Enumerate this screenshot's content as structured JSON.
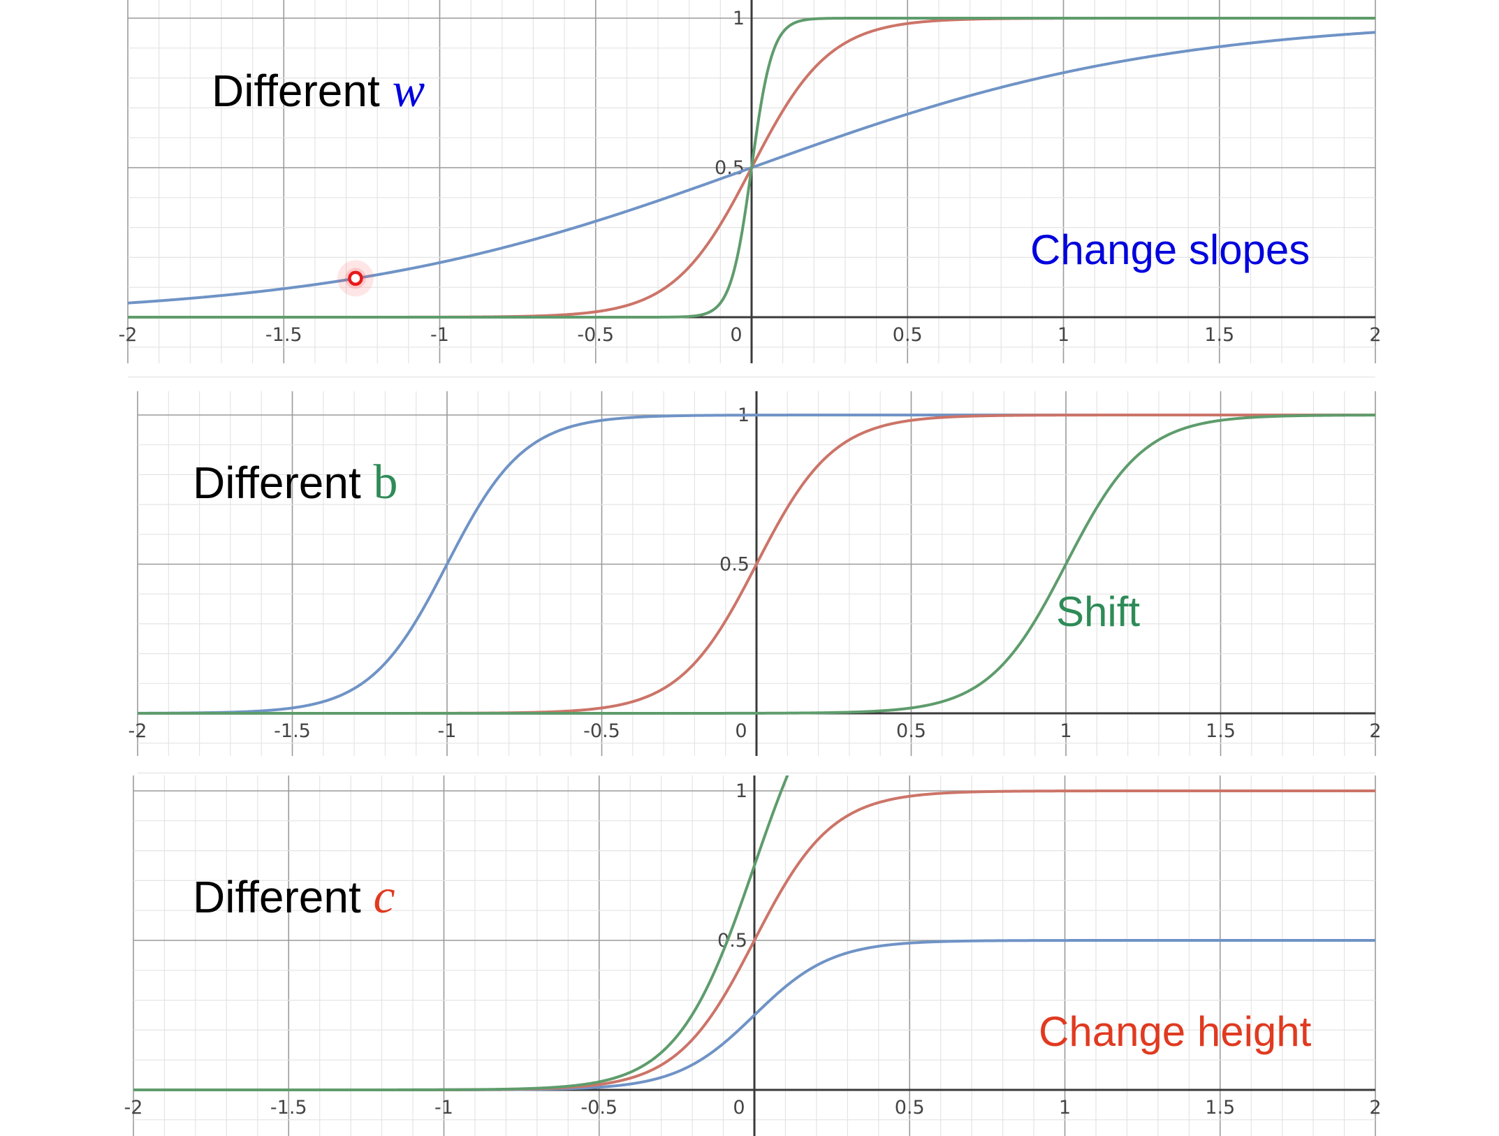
{
  "colors": {
    "blue": "#6f93c6",
    "red": "#cc7468",
    "green": "#5e9c6c",
    "annot_blue": "#0000dd",
    "annot_green": "#2e8b57",
    "annot_red": "#e03a20",
    "marker": "#e8191a"
  },
  "chart_data": [
    {
      "type": "line",
      "title": "Different",
      "title_variable": "w",
      "annotation": "Change slopes",
      "xlim": [
        -2,
        2
      ],
      "ylim": [
        0,
        1
      ],
      "x_ticks": [
        "-2",
        "-1.5",
        "-1",
        "-0.5",
        "0",
        "0.5",
        "1",
        "1.5",
        "2"
      ],
      "y_ticks": [
        "0.5",
        "1"
      ],
      "grid": true,
      "function": "c / (1 + exp(-(b + w*x)))",
      "series": [
        {
          "color": "blue",
          "w": 1.5,
          "b": 0,
          "c": 1
        },
        {
          "color": "red",
          "w": 8,
          "b": 0,
          "c": 1
        },
        {
          "color": "green",
          "w": 30,
          "b": 0,
          "c": 1
        }
      ],
      "marker": {
        "x": -1.27,
        "y": 0.13
      }
    },
    {
      "type": "line",
      "title": "Different",
      "title_variable": "b",
      "annotation": "Shift",
      "xlim": [
        -2,
        2
      ],
      "ylim": [
        0,
        1
      ],
      "x_ticks": [
        "-2",
        "-1.5",
        "-1",
        "-0.5",
        "0",
        "0.5",
        "1",
        "1.5",
        "2"
      ],
      "y_ticks": [
        "0.5",
        "1"
      ],
      "grid": true,
      "function": "c / (1 + exp(-(b + w*x)))",
      "series": [
        {
          "color": "blue",
          "w": 8,
          "b": 8,
          "c": 1
        },
        {
          "color": "red",
          "w": 8,
          "b": 0,
          "c": 1
        },
        {
          "color": "green",
          "w": 8,
          "b": -8,
          "c": 1
        }
      ]
    },
    {
      "type": "line",
      "title": "Different",
      "title_variable": "c",
      "annotation": "Change height",
      "xlim": [
        -2,
        2
      ],
      "ylim": [
        0,
        1
      ],
      "x_ticks": [
        "-2",
        "-1.5",
        "-1",
        "-0.5",
        "0",
        "0.5",
        "1",
        "1.5",
        "2"
      ],
      "y_ticks": [
        "0.5",
        "1"
      ],
      "grid": true,
      "function": "c / (1 + exp(-(b + w*x)))",
      "series": [
        {
          "color": "blue",
          "w": 8,
          "b": 0,
          "c": 0.5
        },
        {
          "color": "red",
          "w": 8,
          "b": 0,
          "c": 1
        },
        {
          "color": "green",
          "w": 8,
          "b": 0,
          "c": 1.5
        }
      ]
    }
  ]
}
